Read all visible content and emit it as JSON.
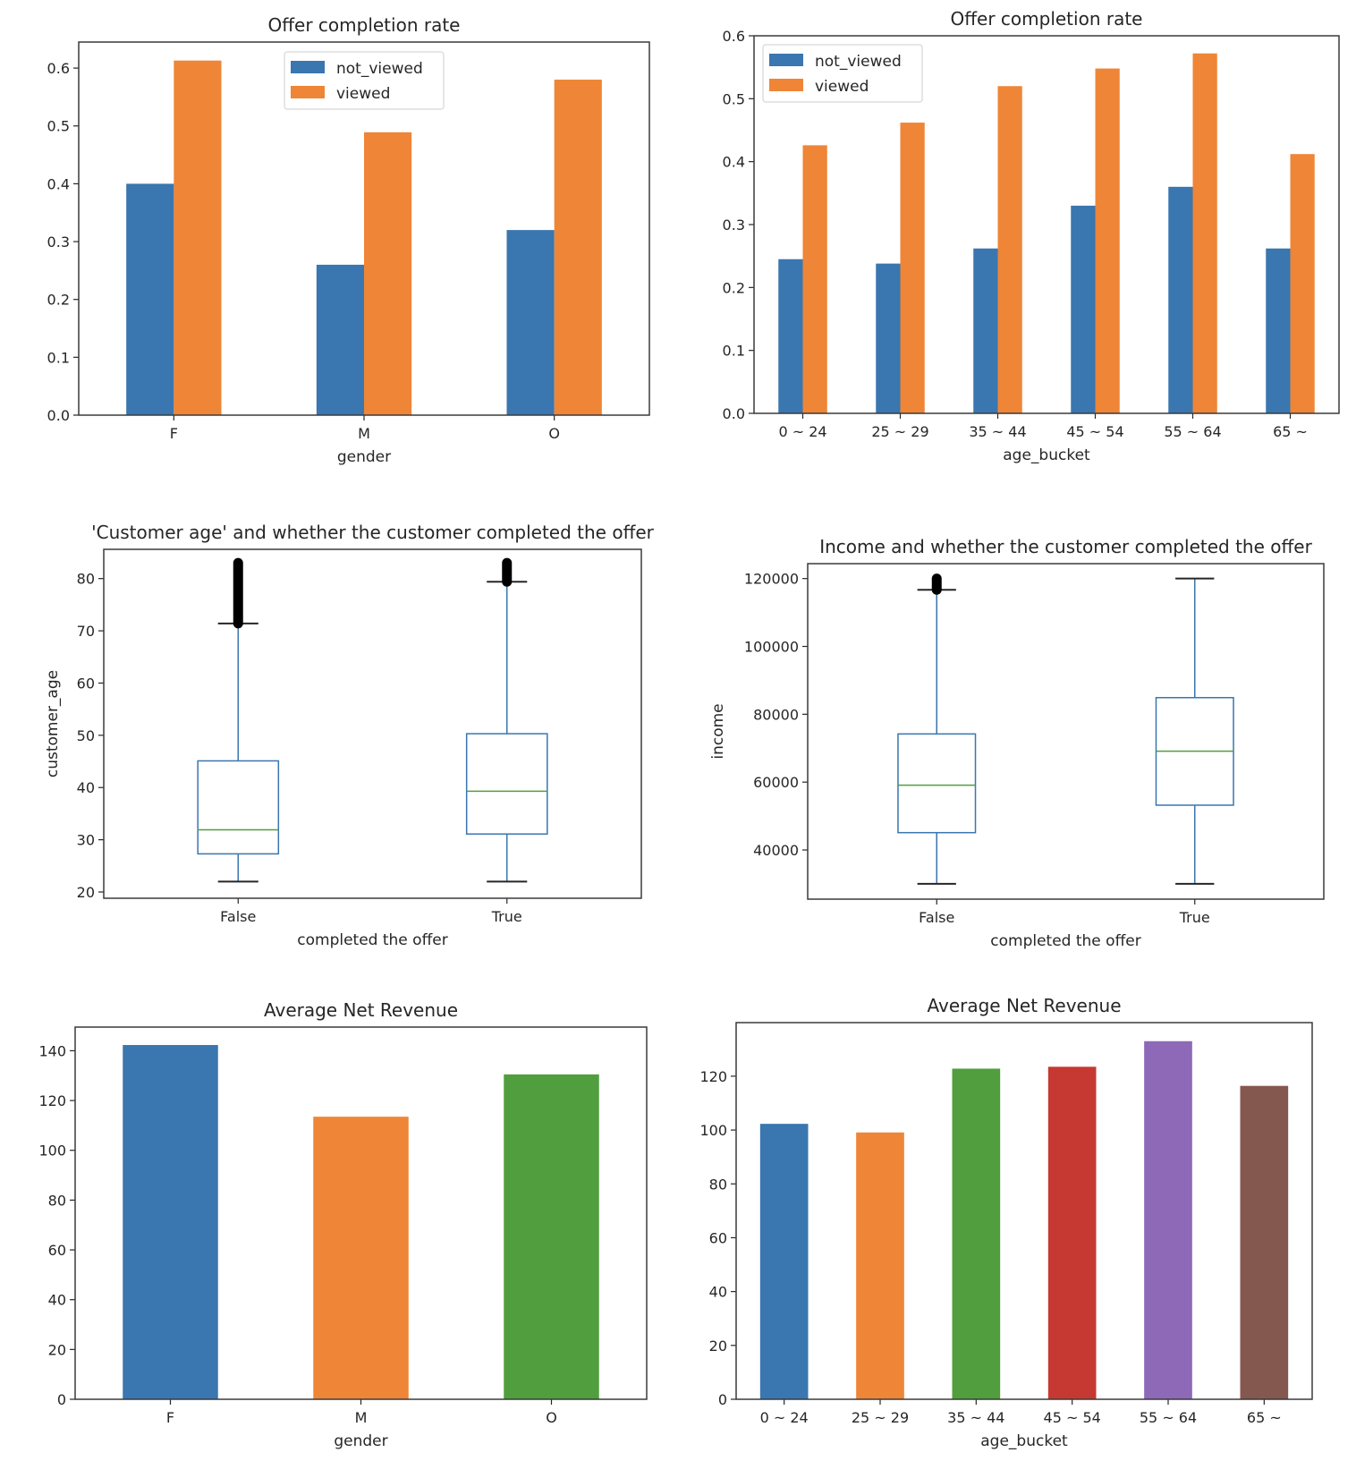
{
  "colors": {
    "blue": "#3a76af",
    "orange": "#ef8536",
    "green": "#519e3e",
    "red": "#c53932",
    "purple": "#8d69b8",
    "brown": "#84584e",
    "box": "#3a76af",
    "median": "#519e3e",
    "flier": "#000000"
  },
  "chart_data": [
    {
      "id": "completion-by-gender",
      "type": "bar",
      "title": "Offer completion rate",
      "xlabel": "gender",
      "ylabel": "",
      "categories": [
        "F",
        "M",
        "O"
      ],
      "series": [
        {
          "name": "not_viewed",
          "values": [
            0.4,
            0.26,
            0.32
          ]
        },
        {
          "name": "viewed",
          "values": [
            0.613,
            0.489,
            0.58
          ]
        }
      ],
      "ylim": [
        0,
        0.645
      ],
      "yticks": [
        0.0,
        0.1,
        0.2,
        0.3,
        0.4,
        0.5,
        0.6
      ],
      "ytick_labels": [
        "0.0",
        "0.1",
        "0.2",
        "0.3",
        "0.4",
        "0.5",
        "0.6"
      ],
      "legend": "top-center",
      "grid": false
    },
    {
      "id": "completion-by-age",
      "type": "bar",
      "title": "Offer completion rate",
      "xlabel": "age_bucket",
      "ylabel": "",
      "categories": [
        "0 ~ 24",
        "25 ~ 29",
        "35 ~ 44",
        "45 ~ 54",
        "55 ~ 64",
        "65 ~"
      ],
      "series": [
        {
          "name": "not_viewed",
          "values": [
            0.245,
            0.238,
            0.262,
            0.33,
            0.36,
            0.262
          ]
        },
        {
          "name": "viewed",
          "values": [
            0.426,
            0.462,
            0.52,
            0.548,
            0.572,
            0.412
          ]
        }
      ],
      "ylim": [
        0,
        0.6
      ],
      "yticks": [
        0.0,
        0.1,
        0.2,
        0.3,
        0.4,
        0.5,
        0.6
      ],
      "ytick_labels": [
        "0.0",
        "0.1",
        "0.2",
        "0.3",
        "0.4",
        "0.5",
        "0.6"
      ],
      "legend": "top-left",
      "grid": false
    },
    {
      "id": "age-vs-completed",
      "type": "box",
      "title": "'Customer age' and whether the customer completed the offer",
      "xlabel": "completed the offer",
      "ylabel": "customer_age",
      "categories": [
        "False",
        "True"
      ],
      "boxes": [
        {
          "whislo": 22,
          "q1": 27.3,
          "med": 31.9,
          "q3": 45.1,
          "whishi": 71.4,
          "fliers_range": [
            71.4,
            83
          ]
        },
        {
          "whislo": 22,
          "q1": 31.1,
          "med": 39.3,
          "q3": 50.3,
          "whishi": 79.4,
          "fliers_range": [
            79.4,
            83
          ]
        }
      ],
      "ylim": [
        18.8,
        85.6
      ],
      "yticks": [
        20,
        30,
        40,
        50,
        60,
        70,
        80
      ],
      "ytick_labels": [
        "20",
        "30",
        "40",
        "50",
        "60",
        "70",
        "80"
      ],
      "grid": false
    },
    {
      "id": "income-vs-completed",
      "type": "box",
      "title": "Income and whether the customer completed the offer",
      "xlabel": "completed the offer",
      "ylabel": "income",
      "categories": [
        "False",
        "True"
      ],
      "boxes": [
        {
          "whislo": 30000,
          "q1": 45100,
          "med": 59100,
          "q3": 74200,
          "whishi": 116700,
          "fliers_range": [
            116700,
            120000
          ]
        },
        {
          "whislo": 30000,
          "q1": 53200,
          "med": 69100,
          "q3": 84900,
          "whishi": 120000,
          "fliers_range": null
        }
      ],
      "ylim": [
        25500,
        124400
      ],
      "yticks": [
        40000,
        60000,
        80000,
        100000,
        120000
      ],
      "ytick_labels": [
        "40000",
        "60000",
        "80000",
        "100000",
        "120000"
      ],
      "grid": false
    },
    {
      "id": "revenue-by-gender",
      "type": "bar",
      "title": "Average Net Revenue",
      "xlabel": "gender",
      "ylabel": "",
      "categories": [
        "F",
        "M",
        "O"
      ],
      "values": [
        142.3,
        113.5,
        130.5
      ],
      "bar_colors": [
        "blue",
        "orange",
        "green"
      ],
      "ylim": [
        0,
        149.5
      ],
      "yticks": [
        0,
        20,
        40,
        60,
        80,
        100,
        120,
        140
      ],
      "ytick_labels": [
        "0",
        "20",
        "40",
        "60",
        "80",
        "100",
        "120",
        "140"
      ],
      "grid": false
    },
    {
      "id": "revenue-by-age",
      "type": "bar",
      "title": "Average Net Revenue",
      "xlabel": "age_bucket",
      "ylabel": "",
      "categories": [
        "0 ~ 24",
        "25 ~ 29",
        "35 ~ 44",
        "45 ~ 54",
        "55 ~ 64",
        "65 ~"
      ],
      "values": [
        102.3,
        99.1,
        122.8,
        123.5,
        133.0,
        116.4
      ],
      "bar_colors": [
        "blue",
        "orange",
        "green",
        "red",
        "purple",
        "brown"
      ],
      "ylim": [
        0,
        139.9
      ],
      "yticks": [
        0,
        20,
        40,
        60,
        80,
        100,
        120
      ],
      "ytick_labels": [
        "0",
        "20",
        "40",
        "60",
        "80",
        "100",
        "120"
      ],
      "grid": false
    }
  ]
}
